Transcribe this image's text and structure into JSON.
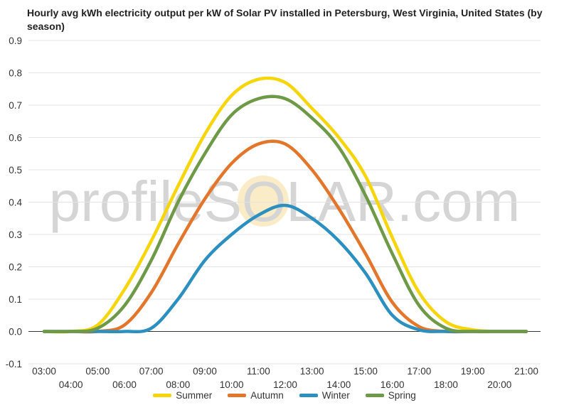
{
  "chart_data": {
    "type": "line",
    "title": "Hourly avg kWh electricity output per kW of Solar PV installed in Petersburg, West Virginia, United States (by season)",
    "watermark": "profileSOLAR.com",
    "x": [
      "03:00",
      "04:00",
      "05:00",
      "06:00",
      "07:00",
      "08:00",
      "09:00",
      "10:00",
      "11:00",
      "12:00",
      "13:00",
      "14:00",
      "15:00",
      "16:00",
      "17:00",
      "18:00",
      "19:00",
      "20:00",
      "21:00"
    ],
    "y_ticks": [
      "0.9",
      "0.8",
      "0.7",
      "0.6",
      "0.5",
      "0.4",
      "0.3",
      "0.2",
      "0.1",
      "0.0",
      "-0.1"
    ],
    "ylim": [
      -0.1,
      0.9
    ],
    "grid": true,
    "legend_position": "bottom",
    "series": [
      {
        "name": "Summer",
        "color": "#f6d50b",
        "values": [
          0,
          0,
          0.02,
          0.13,
          0.28,
          0.45,
          0.61,
          0.73,
          0.78,
          0.77,
          0.69,
          0.6,
          0.48,
          0.29,
          0.12,
          0.03,
          0.005,
          0,
          0
        ]
      },
      {
        "name": "Autumn",
        "color": "#e3762a",
        "values": [
          0,
          0,
          0,
          0.02,
          0.12,
          0.27,
          0.41,
          0.52,
          0.58,
          0.58,
          0.5,
          0.38,
          0.24,
          0.09,
          0.015,
          0,
          0,
          0,
          0
        ]
      },
      {
        "name": "Winter",
        "color": "#2b8fbf",
        "values": [
          0,
          0,
          0,
          0,
          0.01,
          0.1,
          0.22,
          0.3,
          0.36,
          0.39,
          0.35,
          0.28,
          0.18,
          0.05,
          0.005,
          0,
          0,
          0,
          0
        ]
      },
      {
        "name": "Spring",
        "color": "#6e9a48",
        "values": [
          0,
          0,
          0.01,
          0.08,
          0.22,
          0.4,
          0.55,
          0.67,
          0.72,
          0.72,
          0.66,
          0.57,
          0.42,
          0.24,
          0.08,
          0.01,
          0,
          0,
          0
        ]
      }
    ]
  }
}
